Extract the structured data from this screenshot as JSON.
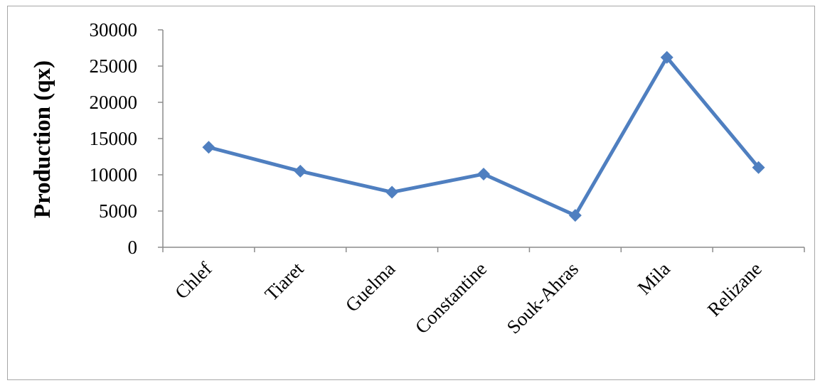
{
  "chart_data": {
    "type": "line",
    "title": "",
    "xlabel": "",
    "ylabel": "Production (qx)",
    "categories": [
      "Chlef",
      "Tiaret",
      "Guelma",
      "Constantine",
      "Souk-Ahras",
      "Mila",
      "Relizane"
    ],
    "series": [
      {
        "values": [
          13800,
          10500,
          7600,
          10100,
          4400,
          26200,
          11000
        ],
        "color": "#4f7fc0",
        "marker": "diamond"
      }
    ],
    "ylim": [
      0,
      30000
    ],
    "yticks": [
      0,
      5000,
      10000,
      15000,
      20000,
      25000,
      30000
    ],
    "grid": false,
    "legend": "none"
  }
}
